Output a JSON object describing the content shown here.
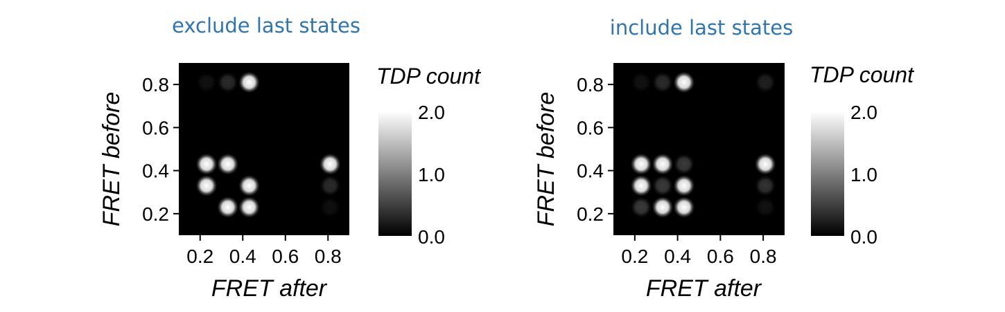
{
  "chart_data": [
    {
      "type": "heatmap",
      "title": "exclude last states",
      "title_color": "#2e75b6",
      "xlabel": "FRET after",
      "ylabel": "FRET before",
      "xlim": [
        0.1,
        0.9
      ],
      "ylim": [
        0.1,
        0.9
      ],
      "x_ticks": [
        0.2,
        0.4,
        0.6,
        0.8
      ],
      "y_ticks": [
        0.2,
        0.4,
        0.6,
        0.8
      ],
      "tick_labels_x": [
        "0.2",
        "0.4",
        "0.6",
        "0.8"
      ],
      "tick_labels_y": [
        "0.2",
        "0.4",
        "0.6",
        "0.8"
      ],
      "colorbar": {
        "label": "TDP count",
        "range": [
          0.0,
          2.0
        ],
        "ticks": [
          "2.0",
          "1.0",
          "0.0"
        ],
        "colormap": "gray"
      },
      "points": [
        {
          "x": 0.23,
          "y": 0.81,
          "v": 0.15
        },
        {
          "x": 0.33,
          "y": 0.81,
          "v": 0.35
        },
        {
          "x": 0.43,
          "y": 0.81,
          "v": 2.0
        },
        {
          "x": 0.23,
          "y": 0.43,
          "v": 2.0
        },
        {
          "x": 0.33,
          "y": 0.43,
          "v": 2.0
        },
        {
          "x": 0.81,
          "y": 0.43,
          "v": 2.0
        },
        {
          "x": 0.23,
          "y": 0.33,
          "v": 2.0
        },
        {
          "x": 0.43,
          "y": 0.33,
          "v": 2.0
        },
        {
          "x": 0.81,
          "y": 0.33,
          "v": 0.35
        },
        {
          "x": 0.33,
          "y": 0.23,
          "v": 2.0
        },
        {
          "x": 0.43,
          "y": 0.23,
          "v": 2.0
        },
        {
          "x": 0.81,
          "y": 0.23,
          "v": 0.12
        }
      ]
    },
    {
      "type": "heatmap",
      "title": "include last states",
      "title_color": "#2e75b6",
      "xlabel": "FRET after",
      "ylabel": "FRET before",
      "xlim": [
        0.1,
        0.9
      ],
      "ylim": [
        0.1,
        0.9
      ],
      "x_ticks": [
        0.2,
        0.4,
        0.6,
        0.8
      ],
      "y_ticks": [
        0.2,
        0.4,
        0.6,
        0.8
      ],
      "tick_labels_x": [
        "0.2",
        "0.4",
        "0.6",
        "0.8"
      ],
      "tick_labels_y": [
        "0.2",
        "0.4",
        "0.6",
        "0.8"
      ],
      "colorbar": {
        "label": "TDP count",
        "range": [
          0.0,
          2.0
        ],
        "ticks": [
          "2.0",
          "1.0",
          "0.0"
        ],
        "colormap": "gray"
      },
      "points": [
        {
          "x": 0.23,
          "y": 0.81,
          "v": 0.15
        },
        {
          "x": 0.33,
          "y": 0.81,
          "v": 0.35
        },
        {
          "x": 0.43,
          "y": 0.81,
          "v": 2.0
        },
        {
          "x": 0.81,
          "y": 0.81,
          "v": 0.25
        },
        {
          "x": 0.23,
          "y": 0.43,
          "v": 2.0
        },
        {
          "x": 0.33,
          "y": 0.43,
          "v": 2.0
        },
        {
          "x": 0.43,
          "y": 0.43,
          "v": 0.45
        },
        {
          "x": 0.81,
          "y": 0.43,
          "v": 2.0
        },
        {
          "x": 0.23,
          "y": 0.33,
          "v": 2.0
        },
        {
          "x": 0.33,
          "y": 0.33,
          "v": 0.45
        },
        {
          "x": 0.43,
          "y": 0.33,
          "v": 2.0
        },
        {
          "x": 0.81,
          "y": 0.33,
          "v": 0.4
        },
        {
          "x": 0.23,
          "y": 0.23,
          "v": 0.45
        },
        {
          "x": 0.33,
          "y": 0.23,
          "v": 2.0
        },
        {
          "x": 0.43,
          "y": 0.23,
          "v": 2.0
        },
        {
          "x": 0.81,
          "y": 0.23,
          "v": 0.15
        }
      ]
    }
  ]
}
